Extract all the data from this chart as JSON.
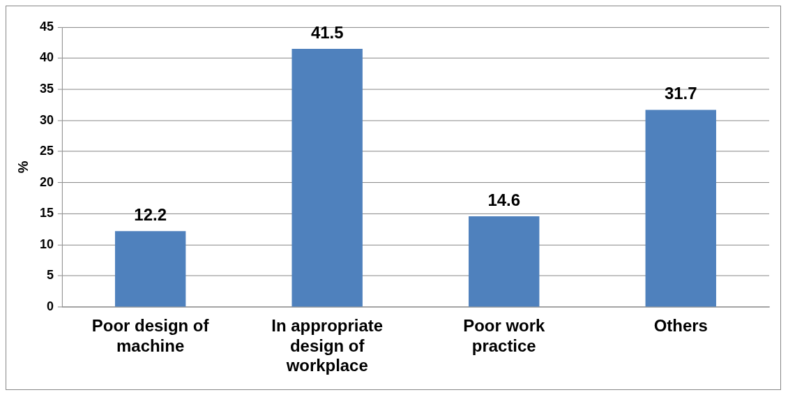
{
  "chart_data": {
    "type": "bar",
    "ylabel": "%",
    "categories": [
      "Poor design of machine",
      "In appropriate design of workplace",
      "Poor work practice",
      "Others"
    ],
    "values": [
      12.2,
      41.5,
      14.6,
      31.7
    ],
    "color": "#4f81bd",
    "ylim": [
      0,
      45
    ],
    "yticks": [
      0,
      5,
      10,
      15,
      20,
      25,
      30,
      35,
      40,
      45
    ],
    "grid": "y",
    "data_labels": true,
    "legend": false
  }
}
